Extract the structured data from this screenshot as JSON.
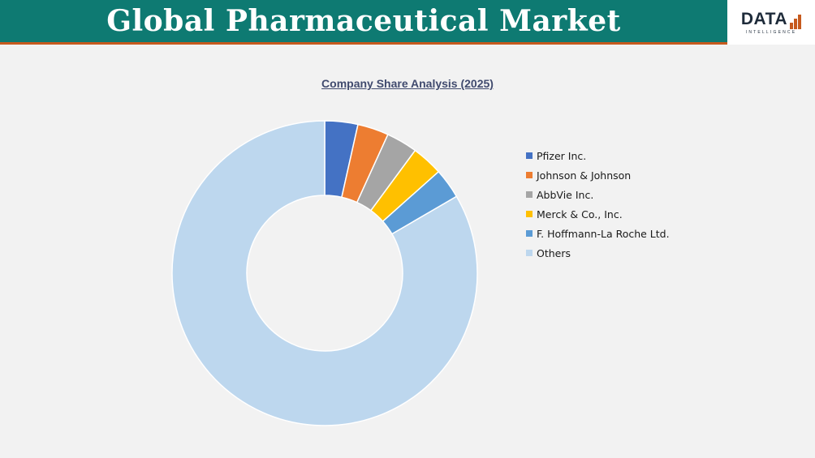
{
  "header": {
    "title": "Global Pharmaceutical Market"
  },
  "logo": {
    "text": "DATA",
    "subtext": "INTELLIGENCE"
  },
  "chart_data": {
    "type": "pie",
    "title": "Company Share Analysis (2025)",
    "legend_position": "right",
    "series": [
      {
        "name": "Pfizer Inc.",
        "value": 3.5,
        "color": "#4472c4"
      },
      {
        "name": "Johnson & Johnson",
        "value": 3.3,
        "color": "#ed7d31"
      },
      {
        "name": "AbbVie Inc.",
        "value": 3.3,
        "color": "#a5a5a5"
      },
      {
        "name": "Merck & Co., Inc.",
        "value": 3.3,
        "color": "#ffc000"
      },
      {
        "name": "F. Hoffmann-La Roche Ltd.",
        "value": 3.2,
        "color": "#5b9bd5"
      },
      {
        "name": "Others",
        "value": 83.4,
        "color": "#bdd7ee"
      }
    ]
  }
}
